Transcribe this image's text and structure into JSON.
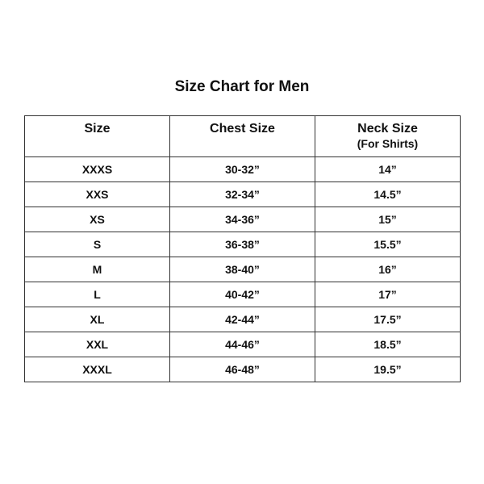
{
  "title": "Size Chart for Men",
  "headers": [
    {
      "label": "Size",
      "sub": ""
    },
    {
      "label": "Chest Size",
      "sub": ""
    },
    {
      "label": "Neck Size",
      "sub": "(For Shirts)"
    }
  ],
  "rows": [
    [
      "XXXS",
      "30-32”",
      "14”"
    ],
    [
      "XXS",
      "32-34”",
      "14.5”"
    ],
    [
      "XS",
      "34-36”",
      "15”"
    ],
    [
      "S",
      "36-38”",
      "15.5”"
    ],
    [
      "M",
      "38-40”",
      "16”"
    ],
    [
      "L",
      "40-42”",
      "17”"
    ],
    [
      "XL",
      "42-44”",
      "17.5”"
    ],
    [
      "XXL",
      "44-46”",
      "18.5”"
    ],
    [
      "XXXL",
      "46-48”",
      "19.5”"
    ]
  ]
}
